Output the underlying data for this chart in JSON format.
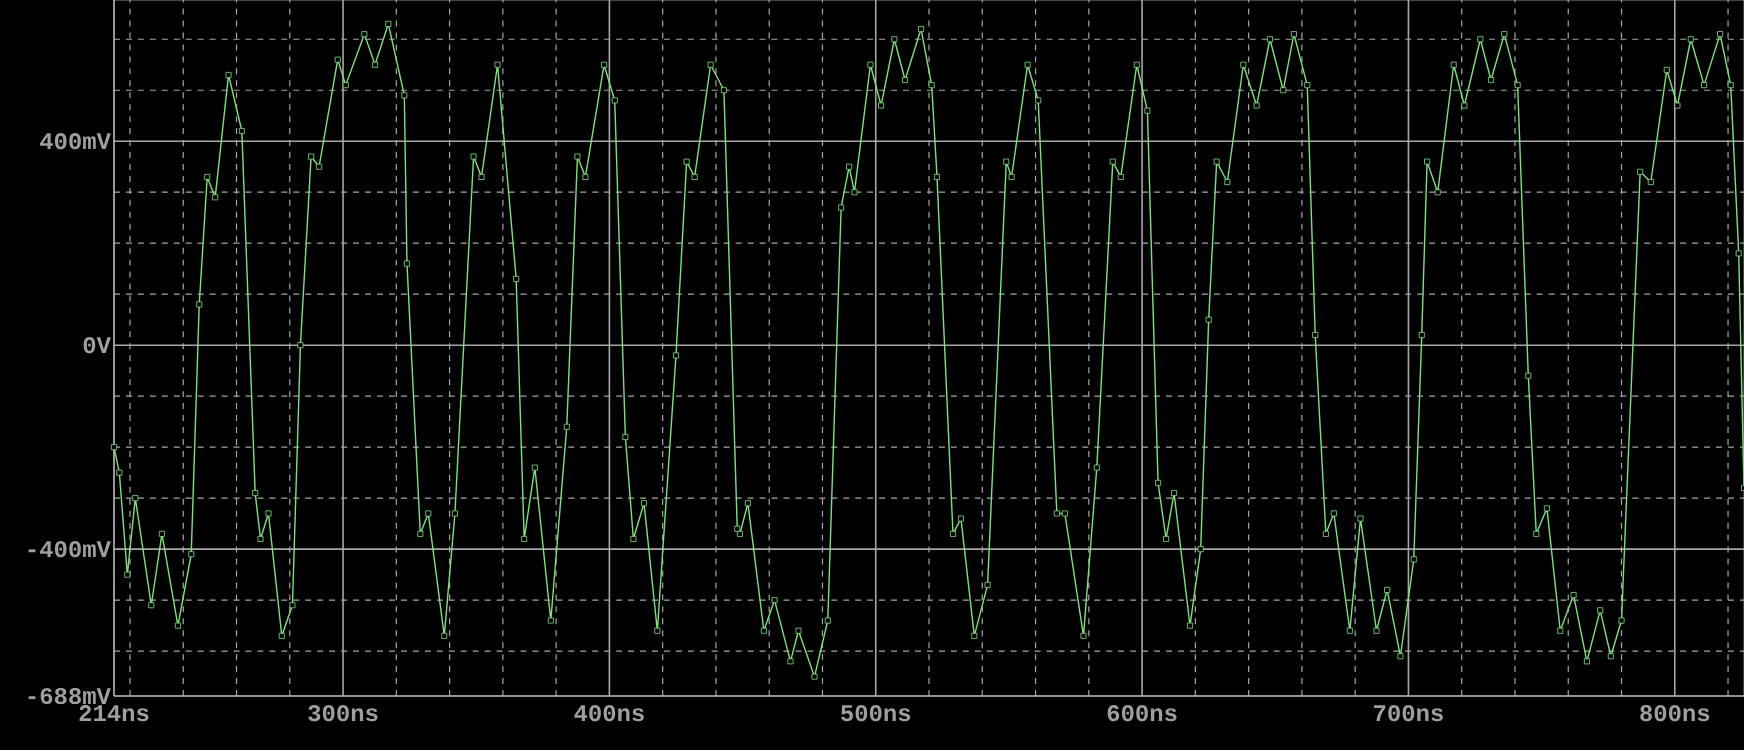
{
  "chart_data": {
    "type": "line",
    "color": "#80e080",
    "marker": "square",
    "grid": true,
    "xlim": [
      214,
      826
    ],
    "ylim": [
      -688,
      677
    ],
    "xticks": [
      {
        "value": 214,
        "label": "214ns"
      },
      {
        "value": 220,
        "label": null
      },
      {
        "value": 240,
        "label": null
      },
      {
        "value": 260,
        "label": null
      },
      {
        "value": 280,
        "label": null
      },
      {
        "value": 300,
        "label": "300ns"
      },
      {
        "value": 320,
        "label": null
      },
      {
        "value": 340,
        "label": null
      },
      {
        "value": 360,
        "label": null
      },
      {
        "value": 380,
        "label": null
      },
      {
        "value": 400,
        "label": "400ns"
      },
      {
        "value": 420,
        "label": null
      },
      {
        "value": 440,
        "label": null
      },
      {
        "value": 460,
        "label": null
      },
      {
        "value": 480,
        "label": null
      },
      {
        "value": 500,
        "label": "500ns"
      },
      {
        "value": 520,
        "label": null
      },
      {
        "value": 540,
        "label": null
      },
      {
        "value": 560,
        "label": null
      },
      {
        "value": 580,
        "label": null
      },
      {
        "value": 600,
        "label": "600ns"
      },
      {
        "value": 620,
        "label": null
      },
      {
        "value": 640,
        "label": null
      },
      {
        "value": 660,
        "label": null
      },
      {
        "value": 680,
        "label": null
      },
      {
        "value": 700,
        "label": "700ns"
      },
      {
        "value": 720,
        "label": null
      },
      {
        "value": 740,
        "label": null
      },
      {
        "value": 760,
        "label": null
      },
      {
        "value": 780,
        "label": null
      },
      {
        "value": 800,
        "label": "800ns"
      },
      {
        "value": 820,
        "label": null
      }
    ],
    "yticks": [
      {
        "value": -688,
        "label": "-688mV"
      },
      {
        "value": -600,
        "label": null
      },
      {
        "value": -500,
        "label": null
      },
      {
        "value": -400,
        "label": "-400mV"
      },
      {
        "value": -300,
        "label": null
      },
      {
        "value": -200,
        "label": null
      },
      {
        "value": -100,
        "label": null
      },
      {
        "value": 0,
        "label": "0V"
      },
      {
        "value": 100,
        "label": null
      },
      {
        "value": 200,
        "label": null
      },
      {
        "value": 300,
        "label": null
      },
      {
        "value": 400,
        "label": "400mV"
      },
      {
        "value": 500,
        "label": null
      },
      {
        "value": 600,
        "label": null
      }
    ],
    "x": [
      214,
      216,
      219,
      222,
      228,
      232,
      238,
      243,
      246,
      249,
      252,
      257,
      262,
      267,
      269,
      272,
      277,
      281,
      284,
      288,
      291,
      298,
      301,
      308,
      312,
      317,
      323,
      324,
      329,
      332,
      338,
      342,
      349,
      352,
      358,
      365,
      368,
      372,
      378,
      384,
      388,
      391,
      398,
      402,
      406,
      409,
      413,
      418,
      425,
      429,
      432,
      438,
      443,
      448,
      449,
      452,
      458,
      462,
      468,
      471,
      477,
      482,
      487,
      490,
      492,
      498,
      502,
      507,
      511,
      517,
      521,
      523,
      529,
      532,
      537,
      542,
      549,
      551,
      557,
      561,
      568,
      571,
      578,
      583,
      589,
      592,
      598,
      602,
      606,
      609,
      612,
      618,
      622,
      625,
      628,
      632,
      638,
      643,
      648,
      653,
      657,
      662,
      665,
      669,
      672,
      678,
      682,
      688,
      692,
      697,
      702,
      705,
      707,
      711,
      717,
      721,
      727,
      731,
      736,
      741,
      745,
      748,
      752,
      757,
      762,
      767,
      772,
      776,
      780,
      787,
      791,
      797,
      801,
      806,
      811,
      817,
      821,
      824,
      826
    ],
    "values": [
      -200,
      -250,
      -450,
      -300,
      -510,
      -370,
      -550,
      -410,
      80,
      330,
      290,
      530,
      420,
      -290,
      -380,
      -330,
      -570,
      -510,
      0,
      370,
      350,
      560,
      510,
      610,
      550,
      630,
      490,
      160,
      -370,
      -330,
      -570,
      -330,
      370,
      330,
      550,
      130,
      -380,
      -240,
      -540,
      -160,
      370,
      330,
      550,
      480,
      -180,
      -380,
      -310,
      -560,
      -20,
      360,
      330,
      550,
      500,
      -360,
      -370,
      -310,
      -560,
      -500,
      -620,
      -560,
      -650,
      -540,
      270,
      350,
      300,
      550,
      470,
      600,
      520,
      620,
      510,
      330,
      -370,
      -340,
      -570,
      -470,
      360,
      330,
      550,
      480,
      -330,
      -330,
      -570,
      -240,
      360,
      330,
      550,
      460,
      -270,
      -380,
      -290,
      -550,
      -400,
      50,
      360,
      320,
      550,
      470,
      600,
      500,
      610,
      510,
      20,
      -370,
      -330,
      -560,
      -340,
      -560,
      -480,
      -610,
      -420,
      20,
      360,
      300,
      550,
      470,
      600,
      520,
      610,
      510,
      -60,
      -370,
      -320,
      -560,
      -490,
      -620,
      -520,
      -610,
      -540,
      340,
      320,
      540,
      470,
      600,
      510,
      610,
      510,
      180,
      -280
    ]
  }
}
